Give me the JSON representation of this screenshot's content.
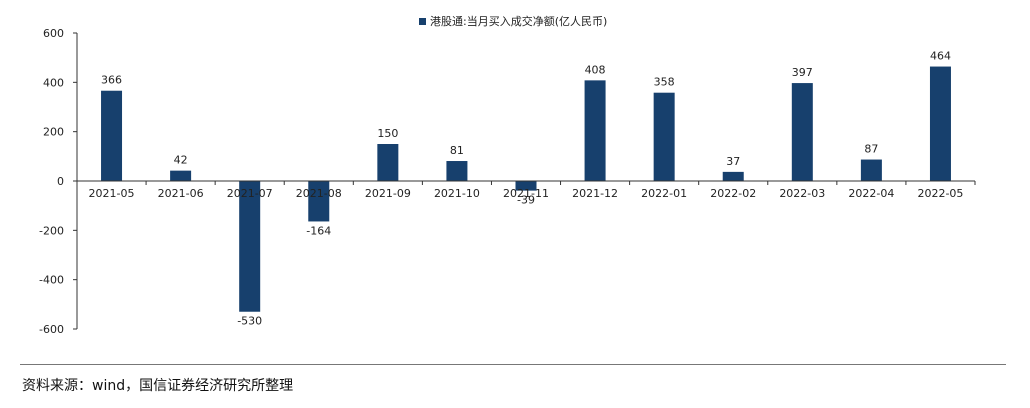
{
  "chart_data": {
    "type": "bar",
    "categories": [
      "2021-05",
      "2021-06",
      "2021-07",
      "2021-08",
      "2021-09",
      "2021-10",
      "2021-11",
      "2021-12",
      "2022-01",
      "2022-02",
      "2022-03",
      "2022-04",
      "2022-05"
    ],
    "series": [
      {
        "name": "港股通:当月买入成交净额(亿人民币)",
        "color": "#17406d",
        "values": [
          366,
          42,
          -530,
          -164,
          150,
          81,
          -39,
          408,
          358,
          37,
          397,
          87,
          464
        ]
      }
    ],
    "ylim": [
      -600,
      600
    ],
    "yticks": [
      600,
      400,
      200,
      0,
      -200,
      -400,
      -600
    ],
    "legend_position": "top-center",
    "grid": false
  },
  "source": "资料来源：wind，国信证券经济研究所整理"
}
